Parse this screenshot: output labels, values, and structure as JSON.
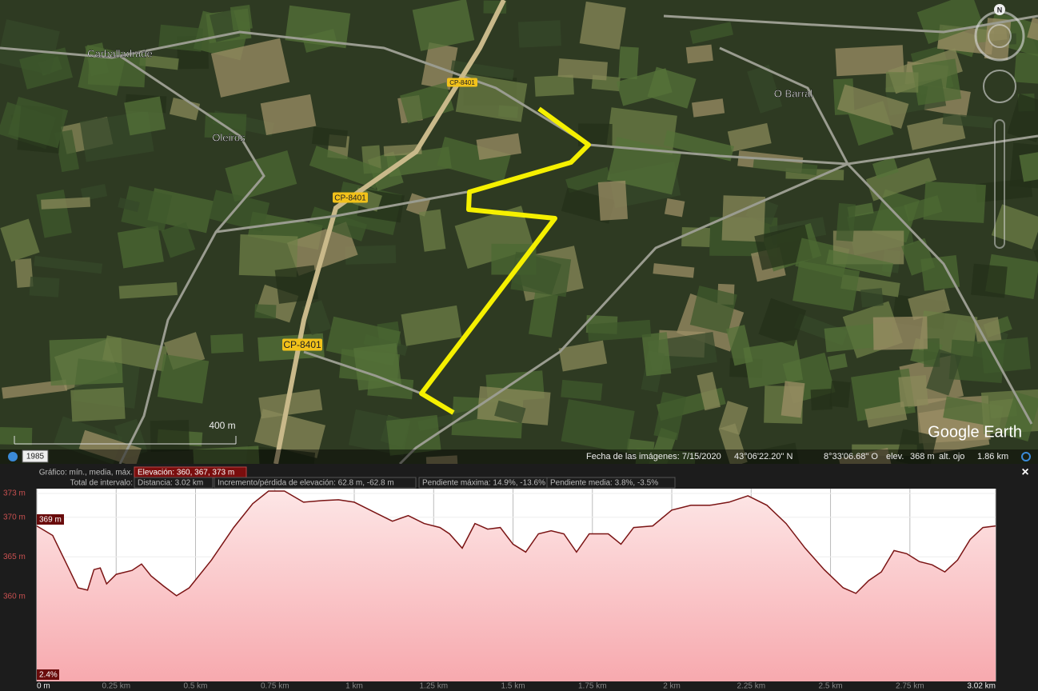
{
  "map": {
    "places": [
      "Carballadrade",
      "Oleiros",
      "O Barral"
    ],
    "roads": [
      "CP-8401",
      "CP-8401",
      "CP-8401"
    ],
    "scale": "400 m",
    "brand": "Google Earth",
    "year": "1985",
    "compass": "N"
  },
  "status": {
    "date": "Fecha de las imágenes: 7/15/2020",
    "lat": "43°06'22.20\" N",
    "lon": "8°33'06.68\" O",
    "elev_label": "elev.",
    "elev": "368 m",
    "eye_label": "alt. ojo",
    "eye": "1.86 km"
  },
  "profile": {
    "row1_label": "Gráfico: mín., media, máx.",
    "elevation": "Elevación: 360, 367, 373 m",
    "row2_label": "Total de intervalo:",
    "distance": "Distancia: 3.02 km",
    "gain": "Incremento/pérdida de elevación: 62.8 m, -62.8 m",
    "max_slope": "Pendiente máxima: 14.9%, -13.6%",
    "avg_slope": "Pendiente media: 3.8%, -3.5%",
    "close": "×"
  },
  "chart_data": {
    "type": "area",
    "color": "#7a1414",
    "x": [
      0,
      0.05,
      0.1,
      0.13,
      0.16,
      0.18,
      0.2,
      0.22,
      0.25,
      0.3,
      0.33,
      0.36,
      0.4,
      0.44,
      0.48,
      0.55,
      0.62,
      0.68,
      0.73,
      0.78,
      0.84,
      0.9,
      0.95,
      1.0,
      1.06,
      1.12,
      1.17,
      1.22,
      1.27,
      1.3,
      1.34,
      1.38,
      1.42,
      1.46,
      1.5,
      1.54,
      1.58,
      1.62,
      1.66,
      1.7,
      1.74,
      1.8,
      1.84,
      1.88,
      1.94,
      2.0,
      2.06,
      2.12,
      2.18,
      2.24,
      2.3,
      2.36,
      2.42,
      2.48,
      2.54,
      2.58,
      2.62,
      2.66,
      2.7,
      2.74,
      2.78,
      2.82,
      2.86,
      2.9,
      2.94,
      2.98,
      3.02
    ],
    "values": [
      368.9,
      367.7,
      363.6,
      361.1,
      360.8,
      363.4,
      363.6,
      361.6,
      362.8,
      363.3,
      364.1,
      362.6,
      361.3,
      360.1,
      361.1,
      364.6,
      368.7,
      371.7,
      373.3,
      373.3,
      371.9,
      372.1,
      372.2,
      371.9,
      370.7,
      369.5,
      370.2,
      369.2,
      368.7,
      367.9,
      366.1,
      369.2,
      368.5,
      368.7,
      366.6,
      365.6,
      367.9,
      368.3,
      367.9,
      365.6,
      367.9,
      367.9,
      366.6,
      368.7,
      368.9,
      370.9,
      371.5,
      371.5,
      371.9,
      372.7,
      371.5,
      369.2,
      366.1,
      363.4,
      361.1,
      360.4,
      362.0,
      363.1,
      365.8,
      365.4,
      364.4,
      364.0,
      363.1,
      364.6,
      367.2,
      368.7,
      368.9
    ],
    "xlim": [
      0,
      3.02
    ],
    "ylim": [
      349.3,
      373.6
    ],
    "xticks": [
      {
        "value": 0,
        "label": "0 m"
      },
      {
        "value": 0.25,
        "label": "0.25 km"
      },
      {
        "value": 0.5,
        "label": "0.5 km"
      },
      {
        "value": 0.75,
        "label": "0.75 km"
      },
      {
        "value": 1,
        "label": "1 km"
      },
      {
        "value": 1.25,
        "label": "1.25 km"
      },
      {
        "value": 1.5,
        "label": "1.5 km"
      },
      {
        "value": 1.75,
        "label": "1.75 km"
      },
      {
        "value": 2,
        "label": "2 km"
      },
      {
        "value": 2.25,
        "label": "2.25 km"
      },
      {
        "value": 2.5,
        "label": "2.5 km"
      },
      {
        "value": 2.75,
        "label": "2.75 km"
      },
      {
        "value": 3.02,
        "label": "3.02 km"
      }
    ],
    "yticks": [
      {
        "value": 360,
        "label": "360 m"
      },
      {
        "value": 365,
        "label": "365 m"
      },
      {
        "value": 370,
        "label": "370 m"
      },
      {
        "value": 373,
        "label": "373 m"
      }
    ],
    "annotations": [
      "369 m",
      "2.4%"
    ],
    "grid": true
  }
}
